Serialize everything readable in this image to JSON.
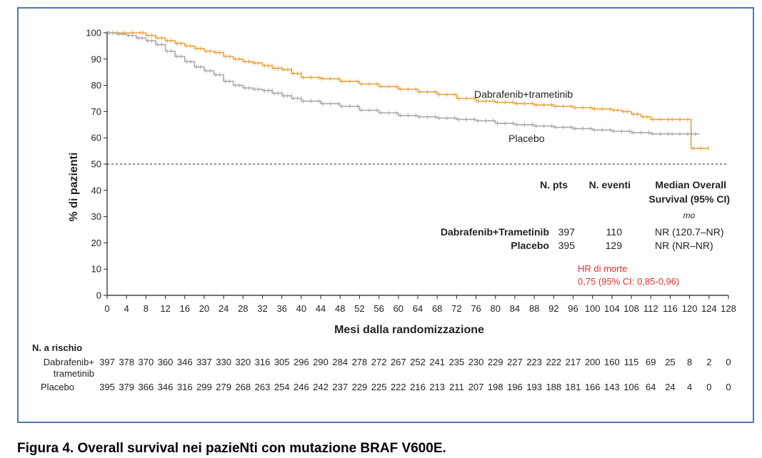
{
  "figure_caption": "Figura 4. Overall survival nei pazieNti con mutazione BRAF V600E.",
  "chart_data": {
    "type": "line",
    "subtype": "kaplan-meier",
    "xlabel": "Mesi dalla randomizzazione",
    "ylabel": "% di pazienti",
    "xlim": [
      0,
      128
    ],
    "ylim": [
      0,
      100
    ],
    "xticks": [
      0,
      4,
      8,
      12,
      16,
      20,
      24,
      28,
      32,
      36,
      40,
      44,
      48,
      52,
      56,
      60,
      64,
      68,
      72,
      76,
      80,
      84,
      88,
      92,
      96,
      100,
      104,
      108,
      112,
      116,
      120,
      124,
      128
    ],
    "yticks": [
      0,
      10,
      20,
      30,
      40,
      50,
      60,
      70,
      80,
      90,
      100
    ],
    "reference_line": {
      "y": 50,
      "style": "dashed"
    },
    "grid": false,
    "series": [
      {
        "name": "Dabrafenib+trametinib",
        "color": "#e8a33d",
        "x": [
          0,
          7,
          8,
          10,
          12,
          14,
          16,
          18,
          20,
          22,
          24,
          26,
          28,
          30,
          32,
          34,
          36,
          38,
          40,
          44,
          48,
          52,
          56,
          60,
          64,
          68,
          72,
          76,
          80,
          84,
          88,
          92,
          96,
          100,
          104,
          106,
          108,
          110,
          112,
          116,
          120,
          120.3,
          124
        ],
        "y": [
          100,
          100,
          99,
          98,
          97,
          96,
          95,
          94,
          93,
          92.5,
          91,
          90,
          89,
          88.5,
          87.5,
          86.5,
          86,
          84.5,
          83,
          82.5,
          81.5,
          80.5,
          79.5,
          78.5,
          77.5,
          76.5,
          75,
          74,
          73.5,
          73,
          72.5,
          72,
          71.5,
          71,
          70.5,
          70,
          69,
          68,
          67,
          67,
          67,
          56,
          56
        ]
      },
      {
        "name": "Placebo",
        "color": "#a6a8ab",
        "x": [
          0,
          2,
          4,
          6,
          8,
          10,
          12,
          14,
          16,
          18,
          20,
          22,
          24,
          26,
          28,
          30,
          32,
          34,
          36,
          38,
          40,
          44,
          48,
          52,
          56,
          60,
          64,
          68,
          72,
          76,
          80,
          84,
          88,
          92,
          96,
          100,
          104,
          108,
          112,
          116,
          120,
          122
        ],
        "y": [
          100,
          99.5,
          99,
          98,
          97,
          95.5,
          93,
          91,
          89,
          87,
          85.5,
          84,
          81.5,
          80,
          79,
          78.5,
          78,
          77,
          76,
          75,
          74,
          73,
          72,
          70.5,
          69.5,
          68.5,
          68,
          67.5,
          67,
          66.5,
          65.5,
          65,
          64.5,
          64,
          63.5,
          63,
          62.5,
          62,
          61.5,
          61.5,
          61.5,
          61.5
        ]
      }
    ],
    "table": {
      "headers": [
        "N. pts",
        "N. eventi",
        "Median Overall",
        "Survival (95% CI)"
      ],
      "unit": "mo",
      "rows": [
        {
          "label": "Dabrafenib+Trametinib",
          "pts": "397",
          "events": "110",
          "median": "NR (120.7–NR)"
        },
        {
          "label": "Placebo",
          "pts": "395",
          "events": "129",
          "median": "NR (NR–NR)"
        }
      ]
    },
    "hazard_ratio": {
      "line1": "HR di morte",
      "line2": "0,75 (95% CI: 0,85-0,96)",
      "color": "#e03030"
    },
    "at_risk": {
      "title": "N. a rischio",
      "rows": [
        {
          "label_line1": "Dabrafenib+",
          "label_line2": "trametinib",
          "values": [
            "397",
            "378",
            "370",
            "360",
            "346",
            "337",
            "330",
            "320",
            "316",
            "305",
            "296",
            "290",
            "284",
            "278",
            "272",
            "267",
            "252",
            "241",
            "235",
            "230",
            "229",
            "227",
            "223",
            "222",
            "217",
            "200",
            "160",
            "115",
            "69",
            "25",
            "8",
            "2",
            "0"
          ]
        },
        {
          "label_line1": "Placebo",
          "label_line2": "",
          "values": [
            "395",
            "379",
            "366",
            "346",
            "316",
            "299",
            "279",
            "268",
            "263",
            "254",
            "246",
            "242",
            "237",
            "229",
            "225",
            "222",
            "216",
            "213",
            "211",
            "207",
            "198",
            "196",
            "193",
            "188",
            "181",
            "166",
            "143",
            "106",
            "64",
            "24",
            "4",
            "0",
            "0"
          ]
        }
      ]
    }
  }
}
